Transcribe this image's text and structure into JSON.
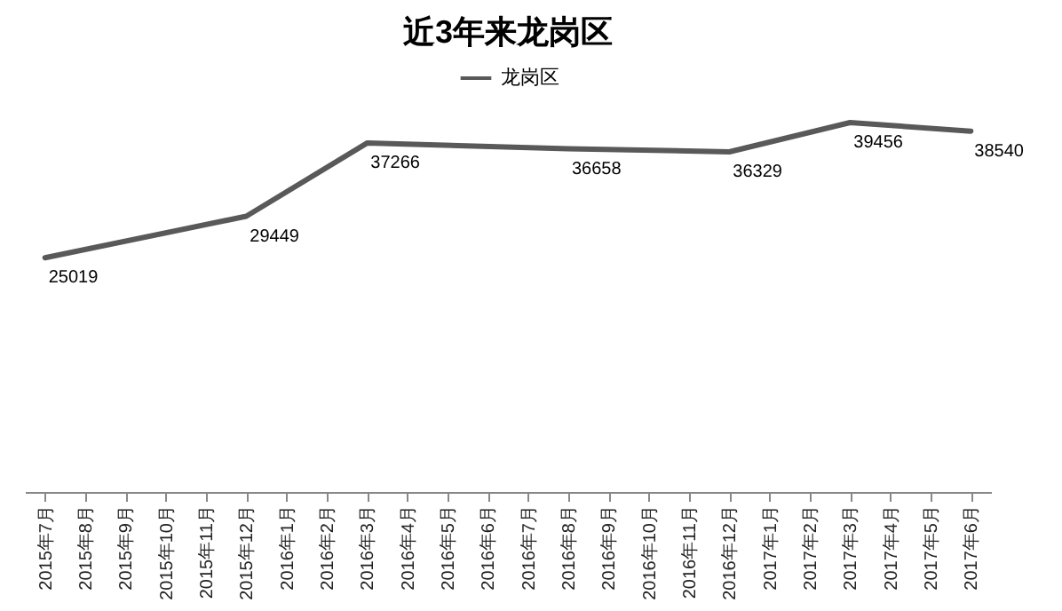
{
  "chart_data": {
    "type": "line",
    "title": "近3年来龙岗区",
    "categories": [
      "2015年7月",
      "2015年8月",
      "2015年9月",
      "2015年10月",
      "2015年11月",
      "2015年12月",
      "2016年1月",
      "2016年2月",
      "2016年3月",
      "2016年4月",
      "2016年5月",
      "2016年6月",
      "2016年7月",
      "2016年8月",
      "2016年9月",
      "2016年10月",
      "2016年11月",
      "2016年12月",
      "2017年1月",
      "2017年2月",
      "2017年3月",
      "2017年4月",
      "2017年5月",
      "2017年6月"
    ],
    "series": [
      {
        "name": "龙岗区",
        "color": "#595959",
        "values": [
          25019,
          null,
          null,
          null,
          null,
          29449,
          null,
          null,
          37266,
          null,
          null,
          null,
          null,
          36658,
          null,
          null,
          null,
          36329,
          null,
          null,
          39456,
          null,
          null,
          38540
        ]
      }
    ],
    "data_labels": true,
    "legend": "top",
    "marker": "none",
    "line_style": "solid"
  }
}
